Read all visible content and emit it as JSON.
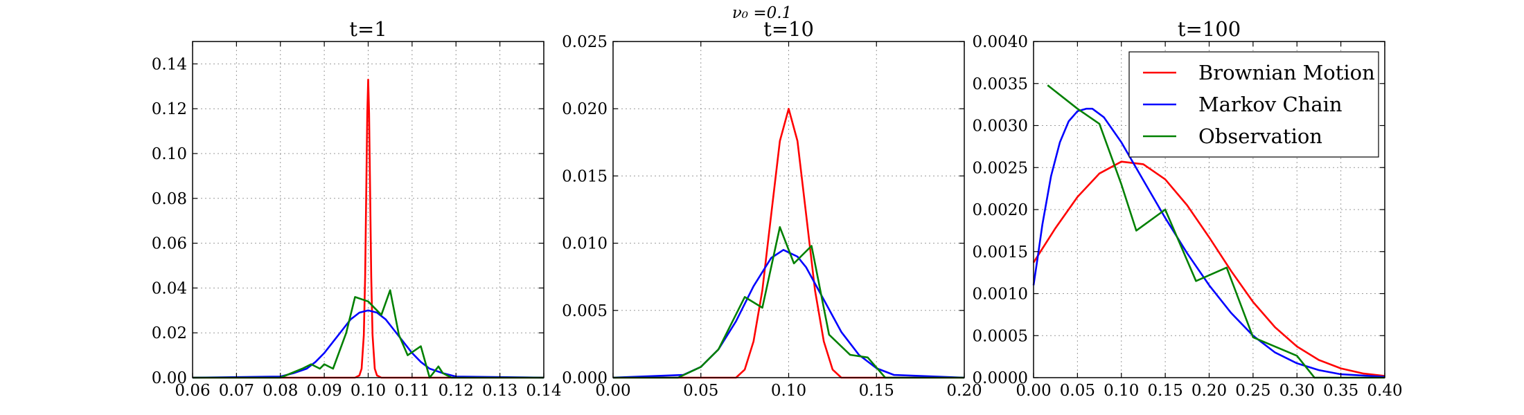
{
  "suptitle": "ν₀ =0.1",
  "legend": {
    "placement": "top-right of third panel",
    "entries": [
      {
        "label": "Brownian Motion",
        "color": "#ff0000"
      },
      {
        "label": "Markov Chain",
        "color": "#0000ff"
      },
      {
        "label": "Observation",
        "color": "#008000"
      }
    ]
  },
  "chart_data": [
    {
      "type": "line",
      "title": "t=1",
      "grid": true,
      "xlim": [
        0.06,
        0.14
      ],
      "ylim": [
        0,
        0.15
      ],
      "xticks": [
        "0.06",
        "0.07",
        "0.08",
        "0.09",
        "0.10",
        "0.11",
        "0.12",
        "0.13",
        "0.14"
      ],
      "xtick_values": [
        0.06,
        0.07,
        0.08,
        0.09,
        0.1,
        0.11,
        0.12,
        0.13,
        0.14
      ],
      "yticks": [
        "0.00",
        "0.02",
        "0.04",
        "0.06",
        "0.08",
        "0.10",
        "0.12",
        "0.14"
      ],
      "ytick_values": [
        0,
        0.02,
        0.04,
        0.06,
        0.08,
        0.1,
        0.12,
        0.14
      ],
      "series": [
        {
          "name": "Brownian Motion",
          "color": "#ff0000",
          "x": [
            0.06,
            0.097,
            0.098,
            0.0985,
            0.099,
            0.0993,
            0.0996,
            0.0998,
            0.1,
            0.1002,
            0.1004,
            0.1007,
            0.101,
            0.1015,
            0.102,
            0.103,
            0.14
          ],
          "y": [
            0,
            0,
            0.001,
            0.004,
            0.019,
            0.045,
            0.09,
            0.118,
            0.133,
            0.118,
            0.09,
            0.045,
            0.019,
            0.004,
            0.001,
            0,
            0
          ]
        },
        {
          "name": "Markov Chain",
          "color": "#0000ff",
          "x": [
            0.06,
            0.08,
            0.083,
            0.086,
            0.088,
            0.09,
            0.092,
            0.094,
            0.096,
            0.098,
            0.1,
            0.102,
            0.104,
            0.106,
            0.108,
            0.11,
            0.112,
            0.114,
            0.117,
            0.12,
            0.14
          ],
          "y": [
            0,
            0.0005,
            0.002,
            0.004,
            0.007,
            0.011,
            0.016,
            0.021,
            0.026,
            0.029,
            0.03,
            0.029,
            0.026,
            0.021,
            0.016,
            0.011,
            0.007,
            0.004,
            0.002,
            0.0005,
            0
          ]
        },
        {
          "name": "Observation",
          "color": "#008000",
          "x": [
            0.06,
            0.08,
            0.085,
            0.087,
            0.089,
            0.09,
            0.092,
            0.095,
            0.097,
            0.1,
            0.103,
            0.105,
            0.107,
            0.109,
            0.112,
            0.114,
            0.116,
            0.117,
            0.118,
            0.119,
            0.14
          ],
          "y": [
            0,
            0,
            0.004,
            0.006,
            0.004,
            0.006,
            0.004,
            0.02,
            0.036,
            0.034,
            0.028,
            0.039,
            0.019,
            0.01,
            0.014,
            0,
            0.005,
            0.002,
            0.001,
            0,
            0
          ]
        }
      ]
    },
    {
      "type": "line",
      "title": "t=10",
      "grid": true,
      "xlim": [
        0,
        0.2
      ],
      "ylim": [
        0,
        0.025
      ],
      "xticks": [
        "0.00",
        "0.05",
        "0.10",
        "0.15",
        "0.20"
      ],
      "xtick_values": [
        0,
        0.05,
        0.1,
        0.15,
        0.2
      ],
      "yticks": [
        "0.000",
        "0.005",
        "0.010",
        "0.015",
        "0.020",
        "0.025"
      ],
      "ytick_values": [
        0,
        0.005,
        0.01,
        0.015,
        0.02,
        0.025
      ],
      "series": [
        {
          "name": "Brownian Motion",
          "color": "#ff0000",
          "x": [
            0,
            0.07,
            0.075,
            0.08,
            0.085,
            0.09,
            0.095,
            0.1,
            0.105,
            0.11,
            0.115,
            0.12,
            0.125,
            0.13,
            0.2
          ],
          "y": [
            0,
            0,
            0.0006,
            0.0027,
            0.0065,
            0.0121,
            0.0176,
            0.02,
            0.0176,
            0.0121,
            0.0065,
            0.0027,
            0.0006,
            0,
            0
          ]
        },
        {
          "name": "Markov Chain",
          "color": "#0000ff",
          "x": [
            0,
            0.04,
            0.05,
            0.06,
            0.07,
            0.08,
            0.09,
            0.097,
            0.105,
            0.11,
            0.12,
            0.13,
            0.14,
            0.15,
            0.16,
            0.2
          ],
          "y": [
            0,
            0.0002,
            0.0008,
            0.0021,
            0.0042,
            0.0068,
            0.0089,
            0.0095,
            0.009,
            0.0082,
            0.0058,
            0.0034,
            0.0017,
            0.0007,
            0.0002,
            0
          ]
        },
        {
          "name": "Observation",
          "color": "#008000",
          "x": [
            0,
            0.037,
            0.05,
            0.06,
            0.075,
            0.085,
            0.095,
            0.103,
            0.113,
            0.123,
            0.135,
            0.145,
            0.155,
            0.2
          ],
          "y": [
            0,
            0,
            0.0008,
            0.0021,
            0.006,
            0.0052,
            0.0112,
            0.0085,
            0.0098,
            0.0032,
            0.0017,
            0.0015,
            0,
            0
          ]
        }
      ]
    },
    {
      "type": "line",
      "title": "t=100",
      "grid": true,
      "xlim": [
        0,
        0.4
      ],
      "ylim": [
        0,
        0.004
      ],
      "xticks": [
        "0.00",
        "0.05",
        "0.10",
        "0.15",
        "0.20",
        "0.25",
        "0.30",
        "0.35",
        "0.40"
      ],
      "xtick_values": [
        0,
        0.05,
        0.1,
        0.15,
        0.2,
        0.25,
        0.3,
        0.35,
        0.4
      ],
      "yticks": [
        "0.0000",
        "0.0005",
        "0.0010",
        "0.0015",
        "0.0020",
        "0.0025",
        "0.0030",
        "0.0035",
        "0.0040"
      ],
      "ytick_values": [
        0,
        0.0005,
        0.001,
        0.0015,
        0.002,
        0.0025,
        0.003,
        0.0035,
        0.004
      ],
      "series": [
        {
          "name": "Brownian Motion",
          "color": "#ff0000",
          "x": [
            0,
            0.025,
            0.05,
            0.075,
            0.1,
            0.125,
            0.15,
            0.175,
            0.2,
            0.225,
            0.25,
            0.275,
            0.3,
            0.325,
            0.35,
            0.375,
            0.4
          ],
          "y": [
            0.00137,
            0.00178,
            0.00215,
            0.00243,
            0.00257,
            0.00254,
            0.00236,
            0.00205,
            0.00167,
            0.00127,
            0.0009,
            0.0006,
            0.00037,
            0.00021,
            0.00011,
            5e-05,
            2e-05
          ]
        },
        {
          "name": "Markov Chain",
          "color": "#0000ff",
          "x": [
            0,
            0.005,
            0.01,
            0.02,
            0.03,
            0.04,
            0.05,
            0.06,
            0.067,
            0.08,
            0.1,
            0.125,
            0.15,
            0.175,
            0.2,
            0.225,
            0.25,
            0.275,
            0.3,
            0.325,
            0.35,
            0.4
          ],
          "y": [
            0.0011,
            0.00145,
            0.00182,
            0.0024,
            0.0028,
            0.00305,
            0.00317,
            0.0032,
            0.0032,
            0.0031,
            0.0028,
            0.00235,
            0.0019,
            0.00148,
            0.0011,
            0.00077,
            0.0005,
            0.0003,
            0.00017,
            9e-05,
            4e-05,
            1e-05
          ]
        },
        {
          "name": "Observation",
          "color": "#008000",
          "x": [
            0.016,
            0.05,
            0.075,
            0.1,
            0.117,
            0.15,
            0.185,
            0.22,
            0.25,
            0.3,
            0.32,
            0.4
          ],
          "y": [
            0.00348,
            0.0032,
            0.00302,
            0.0023,
            0.00175,
            0.002,
            0.00115,
            0.00131,
            0.00048,
            0.00026,
            0,
            0
          ]
        }
      ]
    }
  ]
}
